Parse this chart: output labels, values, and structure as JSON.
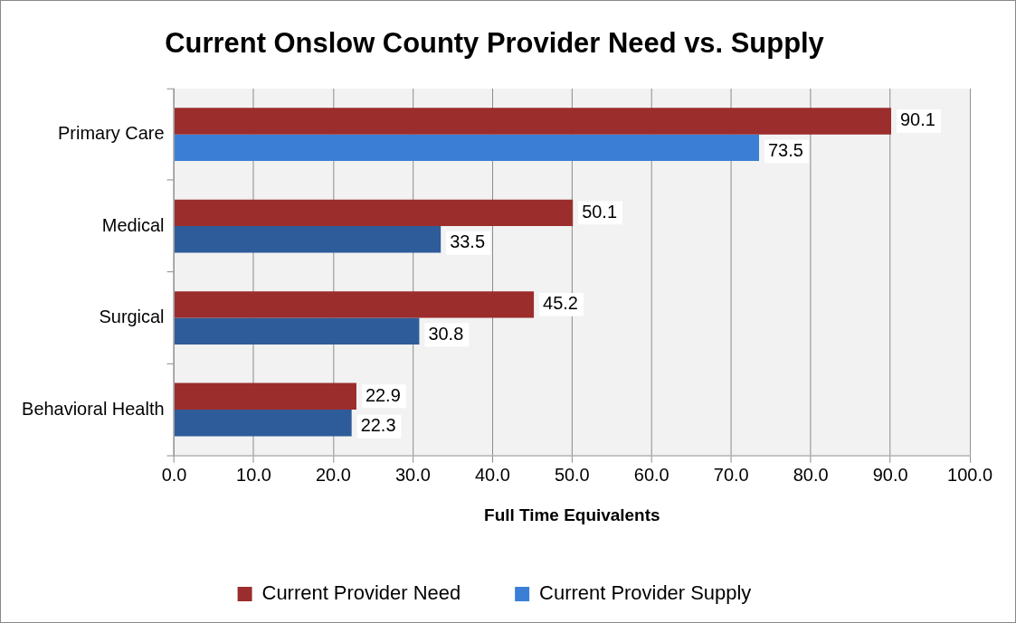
{
  "chart_data": {
    "type": "bar",
    "orientation": "horizontal",
    "title": "Current Onslow County Provider Need vs. Supply",
    "xlabel": "Full Time Equivalents",
    "categories": [
      "Primary Care",
      "Medical",
      "Surgical",
      "Behavioral Health"
    ],
    "series": [
      {
        "name": "Current Provider Need",
        "color": "#9b2d2d",
        "values": [
          90.1,
          50.1,
          45.2,
          22.9
        ]
      },
      {
        "name": "Current Provider Supply",
        "color": "#2e5c9a",
        "colors": [
          "#3a7fd5",
          "#2e5c9a",
          "#2e5c9a",
          "#2e5c9a"
        ],
        "values": [
          73.5,
          33.5,
          30.8,
          22.3
        ]
      }
    ],
    "xlim": [
      0,
      100
    ],
    "xticks": [
      {
        "value": 0,
        "label": "0.0"
      },
      {
        "value": 10,
        "label": "10.0"
      },
      {
        "value": 20,
        "label": "20.0"
      },
      {
        "value": 30,
        "label": "30.0"
      },
      {
        "value": 40,
        "label": "40.0"
      },
      {
        "value": 50,
        "label": "50.0"
      },
      {
        "value": 60,
        "label": "60.0"
      },
      {
        "value": 70,
        "label": "70.0"
      },
      {
        "value": 80,
        "label": "80.0"
      },
      {
        "value": 90,
        "label": "90.0"
      },
      {
        "value": 100,
        "label": "100.0"
      }
    ],
    "grid": "x",
    "legend": "bottom",
    "data_labels": true
  }
}
